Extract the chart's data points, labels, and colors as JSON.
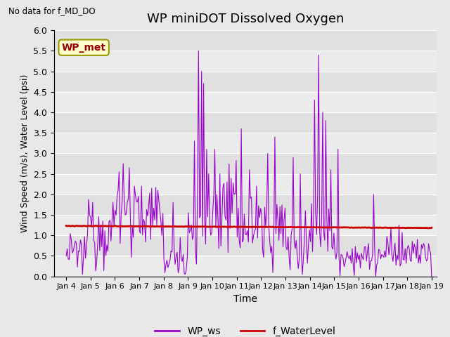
{
  "title": "WP miniDOT Dissolved Oxygen",
  "top_left_text": "No data for f_MD_DO",
  "xlabel": "Time",
  "ylabel": "Wind Speed (m/s), Water Level (psi)",
  "ylim": [
    0.0,
    6.0
  ],
  "yticks": [
    0.0,
    0.5,
    1.0,
    1.5,
    2.0,
    2.5,
    3.0,
    3.5,
    4.0,
    4.5,
    5.0,
    5.5,
    6.0
  ],
  "xlim_days": [
    3.5,
    19.2
  ],
  "xtick_days": [
    4,
    5,
    6,
    7,
    8,
    9,
    10,
    11,
    12,
    13,
    14,
    15,
    16,
    17,
    18,
    19
  ],
  "xtick_labels": [
    "Jan 4",
    "Jan 5",
    "Jan 6",
    "Jan 7",
    "Jan 8",
    "Jan 9",
    "Jan 10",
    "Jan 11",
    "Jan 12",
    "Jan 13",
    "Jan 14",
    "Jan 15",
    "Jan 16",
    "Jan 17",
    "Jan 18",
    "Jan 19"
  ],
  "fig_bg_color": "#e8e8e8",
  "plot_bg_color_light": "#ebebeb",
  "plot_bg_color_dark": "#d8d8d8",
  "ws_color": "#9900cc",
  "wl_color": "#cc0000",
  "wl_linewidth": 2.0,
  "ws_linewidth": 0.8,
  "legend_ws": "WP_ws",
  "legend_wl": "f_WaterLevel",
  "inset_label": "WP_met",
  "inset_bg": "#ffffcc",
  "inset_border": "#999900"
}
